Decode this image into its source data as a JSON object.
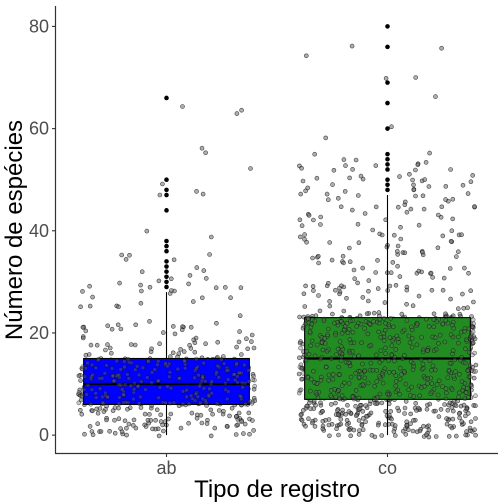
{
  "chart_data": {
    "type": "boxplot",
    "title": "",
    "xlabel": "Tipo de registro",
    "ylabel": "Número de espécies",
    "ylim": [
      -3.5,
      84
    ],
    "yticks": [
      0,
      20,
      40,
      60,
      80
    ],
    "grid": false,
    "legend": "none",
    "categories": [
      "ab",
      "co"
    ],
    "boxes": [
      {
        "category": "ab",
        "fill": "#0000ff",
        "whisker_low": 0,
        "q1": 6,
        "median": 10,
        "q3": 15,
        "whisker_high": 28,
        "outliers": [
          29,
          30,
          31,
          32,
          33,
          34,
          36,
          37,
          38,
          44,
          47,
          48,
          50,
          66
        ],
        "jitter_count": 420,
        "jitter_max": 66
      },
      {
        "category": "co",
        "fill": "#228b22",
        "whisker_low": 0,
        "q1": 7,
        "median": 15,
        "q3": 23,
        "whisker_high": 47,
        "outliers": [
          48,
          49,
          50,
          52,
          53,
          54,
          55,
          60,
          65,
          69,
          76,
          80
        ],
        "jitter_count": 820,
        "jitter_max": 80
      }
    ]
  }
}
